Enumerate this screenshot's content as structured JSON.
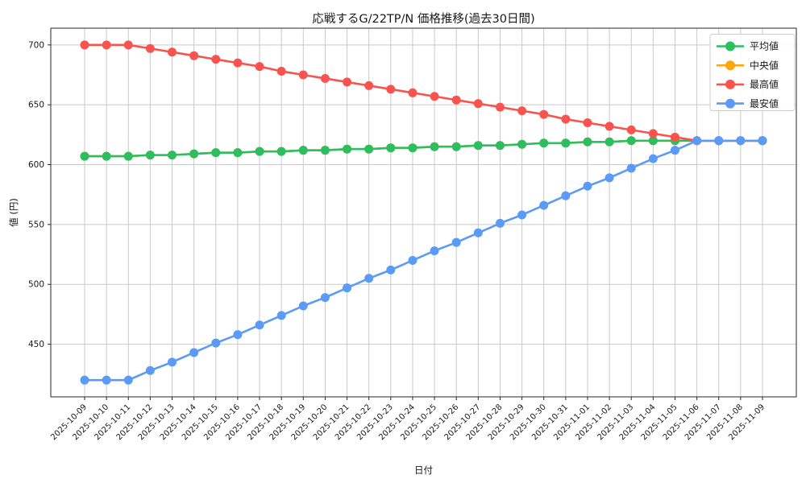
{
  "title": "応戦するG/22TP/N 価格推移(過去30日間)",
  "xlabel": "日付",
  "ylabel": "値 (円)",
  "chart_data": {
    "type": "line",
    "x": [
      "2025-10-09",
      "2025-10-10",
      "2025-10-11",
      "2025-10-12",
      "2025-10-13",
      "2025-10-14",
      "2025-10-15",
      "2025-10-16",
      "2025-10-17",
      "2025-10-18",
      "2025-10-19",
      "2025-10-20",
      "2025-10-21",
      "2025-10-22",
      "2025-10-23",
      "2025-10-24",
      "2025-10-25",
      "2025-10-26",
      "2025-10-27",
      "2025-10-28",
      "2025-10-29",
      "2025-10-30",
      "2025-10-31",
      "2025-11-01",
      "2025-11-02",
      "2025-11-03",
      "2025-11-04",
      "2025-11-05",
      "2025-11-06",
      "2025-11-07",
      "2025-11-08",
      "2025-11-09"
    ],
    "series": [
      {
        "key": "average",
        "name": "平均値",
        "color": "#2cbe60",
        "values": [
          607,
          607,
          607,
          608,
          608,
          609,
          610,
          610,
          611,
          611,
          612,
          612,
          613,
          613,
          614,
          614,
          615,
          615,
          616,
          616,
          617,
          618,
          618,
          619,
          619,
          620,
          620,
          620,
          620,
          620,
          620,
          620
        ]
      },
      {
        "key": "median",
        "name": "中央値",
        "color": "#ffa60f",
        "values": [
          607,
          607,
          607,
          608,
          608,
          609,
          610,
          610,
          611,
          611,
          612,
          612,
          613,
          613,
          614,
          614,
          615,
          615,
          616,
          616,
          617,
          618,
          618,
          619,
          619,
          620,
          620,
          620,
          620,
          620,
          620,
          620
        ]
      },
      {
        "key": "highest",
        "name": "最高値",
        "color": "#f8534e",
        "values": [
          700,
          700,
          700,
          697,
          694,
          691,
          688,
          685,
          682,
          678,
          675,
          672,
          669,
          666,
          663,
          660,
          657,
          654,
          651,
          648,
          645,
          642,
          638,
          635,
          632,
          629,
          626,
          623,
          620,
          620,
          620,
          620
        ]
      },
      {
        "key": "lowest",
        "name": "最安値",
        "color": "#5b9bf5",
        "values": [
          420,
          420,
          420,
          428,
          435,
          443,
          451,
          458,
          466,
          474,
          482,
          489,
          497,
          505,
          512,
          520,
          528,
          535,
          543,
          551,
          558,
          566,
          574,
          582,
          589,
          597,
          605,
          612,
          620,
          620,
          620,
          620
        ]
      }
    ],
    "draw_order": [
      1,
      0,
      2,
      3
    ],
    "yticks": [
      450,
      500,
      550,
      600,
      650,
      700
    ],
    "ylim": [
      406,
      714
    ],
    "grid": true,
    "legend_position": "upper right"
  }
}
